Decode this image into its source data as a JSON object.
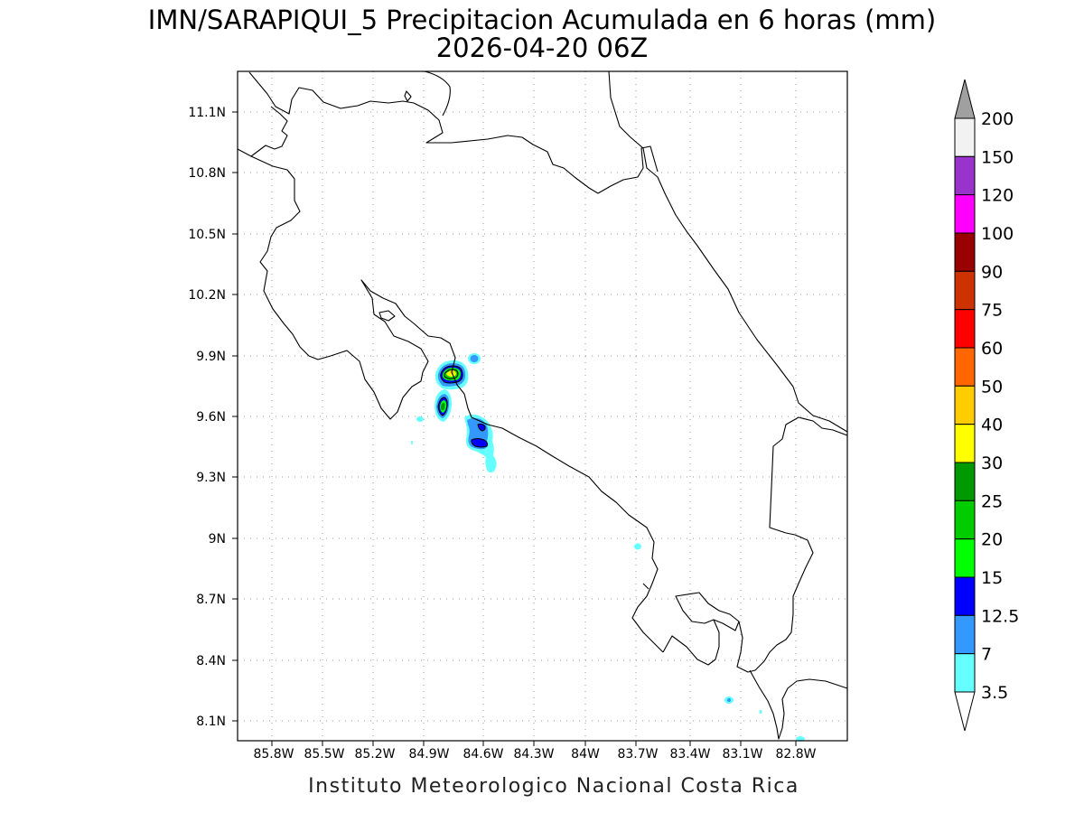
{
  "title": {
    "line1": "IMN/SARAPIQUI_5 Precipitacion Acumulada en 6 horas (mm)",
    "line2": "2026-04-20 06Z"
  },
  "footer": "Instituto Meteorologico Nacional Costa Rica",
  "map": {
    "lon_range": [
      -86.0,
      -82.4
    ],
    "lat_range": [
      8.0,
      11.3
    ],
    "lat_ticks": [
      "11.1N",
      "10.8N",
      "10.5N",
      "10.2N",
      "9.9N",
      "9.6N",
      "9.3N",
      "9N",
      "8.7N",
      "8.4N",
      "8.1N"
    ],
    "lon_ticks": [
      "85.8W",
      "85.5W",
      "85.2W",
      "84.9W",
      "84.6W",
      "84.3W",
      "84W",
      "83.7W",
      "83.4W",
      "83.1W",
      "82.8W"
    ],
    "grid": "dotted"
  },
  "colorbar": {
    "levels": [
      "200",
      "150",
      "120",
      "100",
      "90",
      "75",
      "60",
      "50",
      "40",
      "30",
      "25",
      "20",
      "15",
      "12.5",
      "7",
      "3.5"
    ],
    "colors": [
      "#f2f2f2",
      "#9933cc",
      "#ff00ff",
      "#990000",
      "#cc3300",
      "#ff0000",
      "#ff6600",
      "#ffcc00",
      "#ffff00",
      "#009900",
      "#00cc00",
      "#00ff00",
      "#0000ff",
      "#3399ff",
      "#66ffff"
    ],
    "over_color": "#a0a0a0",
    "under_color": "#ffffff"
  },
  "precip_cells": [
    {
      "name": "cell-north-main",
      "max_mm": 40
    },
    {
      "name": "cell-south-main",
      "max_mm": 30
    },
    {
      "name": "cell-east-dot",
      "max_mm": 7
    },
    {
      "name": "cell-coast-a",
      "max_mm": 15
    },
    {
      "name": "cell-coast-b",
      "max_mm": 15
    },
    {
      "name": "cell-small-1",
      "max_mm": 3.5
    },
    {
      "name": "cell-small-2",
      "max_mm": 3.5
    },
    {
      "name": "cell-small-3",
      "max_mm": 3.5
    },
    {
      "name": "cell-small-4",
      "max_mm": 3.5
    }
  ]
}
